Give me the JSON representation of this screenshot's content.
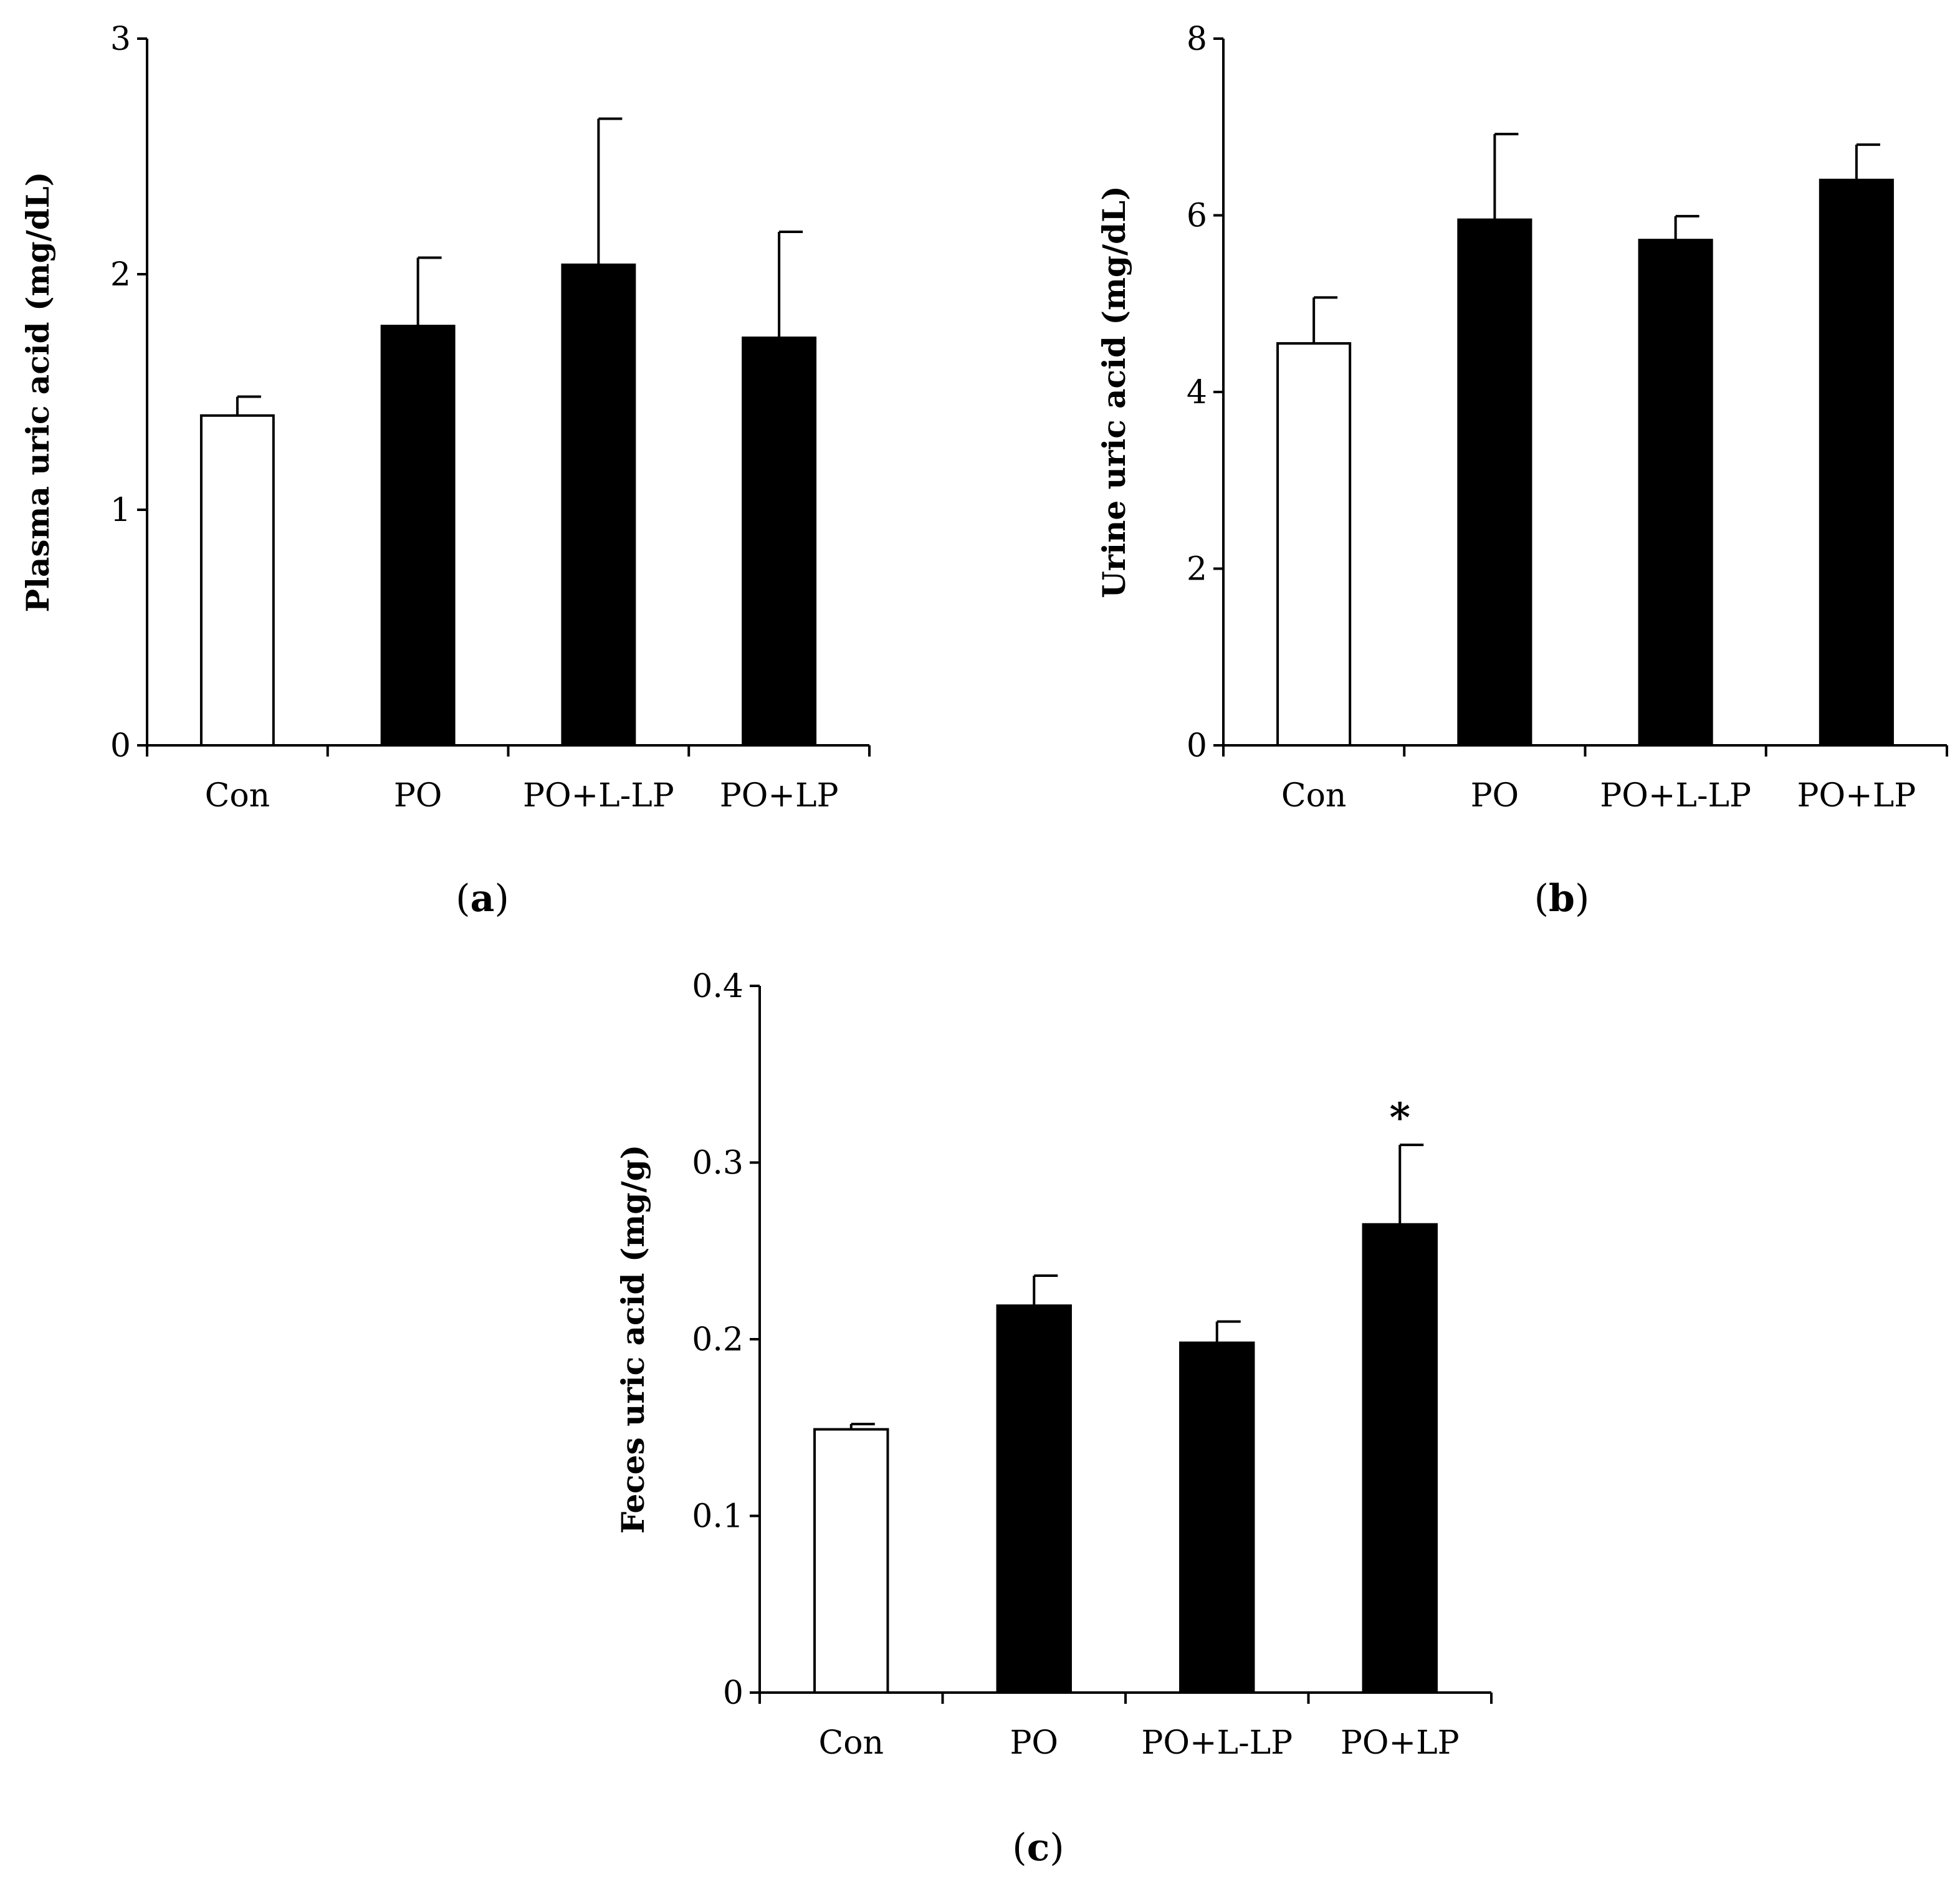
{
  "figure": {
    "panels": [
      {
        "label_open": "(",
        "label_letter": "a",
        "label_close": ")"
      },
      {
        "label_open": "(",
        "label_letter": "b",
        "label_close": ")"
      },
      {
        "label_open": "(",
        "label_letter": "c",
        "label_close": ")"
      }
    ]
  },
  "colors": {
    "filled": "#000000",
    "open": "#ffffff",
    "stroke": "#000000"
  },
  "chart_data": [
    {
      "type": "bar",
      "title": "",
      "xlabel": "",
      "ylabel": "Plasma uric acid (mg/dL)",
      "categories": [
        "Con",
        "PO",
        "PO+L-LP",
        "PO+LP"
      ],
      "values": [
        1.4,
        1.78,
        2.04,
        1.73
      ],
      "errors": [
        0.08,
        0.29,
        0.62,
        0.45
      ],
      "fills": [
        "open",
        "filled",
        "filled",
        "filled"
      ],
      "annotations": [
        "",
        "",
        "",
        ""
      ],
      "ylim": [
        0,
        3
      ],
      "yticks": [
        "0",
        "1",
        "2",
        "3"
      ],
      "grid": false
    },
    {
      "type": "bar",
      "title": "",
      "xlabel": "",
      "ylabel": "Urine uric acid (mg/dL)",
      "categories": [
        "Con",
        "PO",
        "PO+L-LP",
        "PO+LP"
      ],
      "values": [
        4.55,
        5.95,
        5.72,
        6.4
      ],
      "errors": [
        0.52,
        0.97,
        0.27,
        0.4
      ],
      "fills": [
        "open",
        "filled",
        "filled",
        "filled"
      ],
      "annotations": [
        "",
        "",
        "",
        ""
      ],
      "ylim": [
        0,
        8
      ],
      "yticks": [
        "0",
        "2",
        "4",
        "6",
        "8"
      ],
      "grid": false
    },
    {
      "type": "bar",
      "title": "",
      "xlabel": "",
      "ylabel": "Feces uric acid (mg/g)",
      "categories": [
        "Con",
        "PO",
        "PO+L-LP",
        "PO+LP"
      ],
      "values": [
        0.149,
        0.219,
        0.198,
        0.265
      ],
      "errors": [
        0.003,
        0.017,
        0.012,
        0.045
      ],
      "fills": [
        "open",
        "filled",
        "filled",
        "filled"
      ],
      "annotations": [
        "",
        "",
        "",
        "*"
      ],
      "ylim": [
        0,
        0.4
      ],
      "yticks": [
        "0",
        "0.1",
        "0.2",
        "0.3",
        "0.4"
      ],
      "grid": false
    }
  ]
}
